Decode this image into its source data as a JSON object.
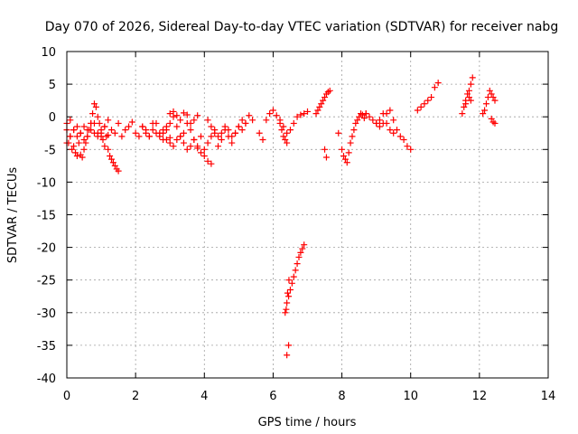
{
  "chart_data": {
    "type": "scatter",
    "title": "Day 070 of 2026, Sidereal Day-to-day VTEC variation (SDTVAR) for receiver nabg",
    "xlabel": "GPS time / hours",
    "ylabel": "SDTVAR / TECUs",
    "xlim": [
      0,
      14
    ],
    "ylim": [
      -40,
      10
    ],
    "xticks": [
      0,
      2,
      4,
      6,
      8,
      10,
      12,
      14
    ],
    "yticks": [
      10,
      5,
      0,
      -5,
      -10,
      -15,
      -20,
      -25,
      -30,
      -35,
      -40
    ],
    "grid": true,
    "marker": "plus",
    "color": "#ff0000",
    "segments": [
      {
        "x": [
          0.0,
          0.05,
          0.1,
          0.15,
          0.2,
          0.25,
          0.3,
          0.35,
          0.4,
          0.45,
          0.5,
          0.55,
          0.6,
          0.65,
          0.7,
          0.75,
          0.8,
          0.85,
          0.9,
          0.95,
          1.0,
          1.05,
          1.1,
          1.15,
          1.2,
          1.25,
          1.3,
          1.35,
          1.4,
          1.45,
          1.5
        ],
        "y": [
          -2.0,
          -4.0,
          -3.0,
          -5.0,
          -4.5,
          -5.5,
          -6.0,
          -4.0,
          -5.8,
          -6.2,
          -5.0,
          -4.0,
          -3.0,
          -2.0,
          -1.0,
          0.5,
          2.0,
          1.5,
          0.0,
          -1.0,
          -2.5,
          -3.5,
          -4.5,
          -3.0,
          -5.0,
          -6.0,
          -6.5,
          -7.0,
          -7.5,
          -8.0,
          -8.3
        ]
      },
      {
        "x": [
          0.0,
          0.1,
          0.2,
          0.3,
          0.4,
          0.5,
          0.6,
          0.7,
          0.8,
          0.9,
          1.0,
          1.1,
          1.2,
          1.3,
          1.4,
          1.5,
          1.6,
          1.7,
          1.8,
          1.9,
          2.0,
          2.1,
          2.2,
          2.3,
          2.4,
          2.5,
          2.6,
          2.7,
          2.8,
          2.9,
          3.0
        ],
        "y": [
          -1.0,
          -0.5,
          -2.0,
          -3.0,
          -2.5,
          -1.5,
          -3.0,
          -2.0,
          -1.0,
          -2.5,
          -3.0,
          -1.5,
          -0.5,
          -2.0,
          -2.5,
          -1.0,
          -3.0,
          -2.0,
          -1.5,
          -0.8,
          -2.5,
          -3.0,
          -1.5,
          -2.0,
          -3.0,
          -1.0,
          -2.5,
          -3.0,
          -2.0,
          -1.5,
          -3.2
        ]
      },
      {
        "x": [
          0.0,
          0.1,
          0.2,
          0.3,
          0.4,
          0.5,
          0.6,
          0.7,
          0.8,
          0.9,
          1.0,
          1.1,
          1.2
        ],
        "y": [
          -4.0,
          -3.0,
          -2.0,
          -1.5,
          -2.5,
          -3.5,
          -2.0,
          -1.0,
          -2.5,
          -3.0,
          -2.0,
          -1.5,
          -2.8
        ]
      },
      {
        "x": [
          2.2,
          2.3,
          2.4,
          2.5,
          2.6,
          2.7,
          2.8,
          2.9,
          3.0,
          3.1,
          3.2,
          3.3,
          3.4,
          3.5,
          3.6,
          3.7,
          3.8,
          3.9,
          4.0,
          4.1,
          4.2,
          4.3,
          4.4,
          4.5,
          4.6,
          4.7,
          4.8,
          4.9,
          5.0,
          5.1,
          5.2
        ],
        "y": [
          -1.5,
          -2.5,
          -3.0,
          -2.0,
          -1.0,
          -2.5,
          -3.5,
          -2.0,
          -1.0,
          0.0,
          -1.5,
          -3.0,
          -2.5,
          -1.0,
          -2.0,
          -3.5,
          -4.5,
          -3.0,
          -5.0,
          -4.0,
          -3.0,
          -2.5,
          -4.5,
          -3.5,
          -2.0,
          -3.0,
          -4.0,
          -2.5,
          -1.5,
          -2.0,
          -1.0
        ]
      },
      {
        "x": [
          2.8,
          2.9,
          3.0,
          3.1,
          3.2,
          3.3,
          3.4,
          3.5,
          3.6,
          3.7,
          3.8,
          3.9,
          4.0,
          4.1,
          4.2
        ],
        "y": [
          -2.5,
          -3.5,
          -4.0,
          -4.5,
          -3.5,
          -3.0,
          -4.0,
          -5.0,
          -4.5,
          -3.5,
          -4.8,
          -5.5,
          -6.0,
          -6.8,
          -7.2
        ]
      },
      {
        "x": [
          3.0,
          3.1,
          3.2,
          3.3,
          3.4,
          3.5,
          3.6,
          3.7,
          3.8
        ],
        "y": [
          0.5,
          0.8,
          0.2,
          -0.5,
          0.6,
          0.3,
          -1.0,
          -0.5,
          0.2
        ]
      },
      {
        "x": [
          4.1,
          4.2,
          4.3,
          4.4,
          4.5,
          4.6,
          4.7,
          4.8,
          4.9,
          5.0,
          5.1,
          5.2,
          5.3,
          5.4
        ],
        "y": [
          -0.5,
          -1.5,
          -2.0,
          -3.0,
          -2.5,
          -1.5,
          -2.0,
          -3.0,
          -2.5,
          -1.5,
          -0.5,
          -1.0,
          0.2,
          -0.5
        ]
      },
      {
        "x": [
          5.6,
          5.7,
          5.8,
          5.9,
          6.0,
          6.1,
          6.2,
          6.3,
          6.4,
          6.5,
          6.6,
          6.7,
          6.8,
          6.9,
          7.0
        ],
        "y": [
          -2.5,
          -3.5,
          -0.5,
          0.5,
          1.0,
          0.2,
          -0.5,
          -1.5,
          -2.5,
          -2.0,
          -1.0,
          0.0,
          0.3,
          0.5,
          0.8
        ]
      },
      {
        "x": [
          6.2,
          6.25,
          6.3,
          6.35,
          6.4
        ],
        "y": [
          -1.0,
          -2.0,
          -3.0,
          -3.5,
          -4.0
        ]
      },
      {
        "x": [
          6.35,
          6.4,
          6.45,
          6.5,
          6.55,
          6.6,
          6.65,
          6.7,
          6.75,
          6.8,
          6.85,
          6.9
        ],
        "y": [
          -30.0,
          -28.5,
          -27.5,
          -26.5,
          -25.5,
          -24.5,
          -23.5,
          -22.5,
          -21.5,
          -20.8,
          -20.2,
          -19.6
        ]
      },
      {
        "x": [
          6.38,
          6.42,
          6.46
        ],
        "y": [
          -29.5,
          -27.0,
          -25.0
        ]
      },
      {
        "x": [
          6.4,
          6.45
        ],
        "y": [
          -36.5,
          -35.0
        ]
      },
      {
        "x": [
          7.25,
          7.3,
          7.35,
          7.4,
          7.45,
          7.5,
          7.55,
          7.6,
          7.65
        ],
        "y": [
          0.5,
          1.0,
          1.5,
          2.0,
          2.5,
          3.0,
          3.5,
          3.8,
          4.0
        ]
      },
      {
        "x": [
          7.5,
          7.55
        ],
        "y": [
          -5.0,
          -6.2
        ]
      },
      {
        "x": [
          7.9
        ],
        "y": [
          -2.5
        ]
      },
      {
        "x": [
          8.0,
          8.05,
          8.1,
          8.15,
          8.2,
          8.25,
          8.3,
          8.35,
          8.4,
          8.45,
          8.5,
          8.55,
          8.6,
          8.65,
          8.7
        ],
        "y": [
          -5.0,
          -6.0,
          -6.5,
          -7.0,
          -5.5,
          -4.0,
          -3.0,
          -2.0,
          -1.0,
          -0.5,
          0.0,
          0.5,
          0.3,
          -0.2,
          0.5
        ]
      },
      {
        "x": [
          8.7,
          8.8,
          8.9,
          9.0,
          9.1,
          9.2,
          9.3,
          9.4,
          9.5,
          9.6,
          9.7,
          9.8,
          9.9,
          10.0
        ],
        "y": [
          0.5,
          0.0,
          -0.5,
          -1.0,
          -1.5,
          -1.0,
          0.5,
          1.0,
          -0.5,
          -2.0,
          -3.0,
          -3.5,
          -4.5,
          -5.0
        ]
      },
      {
        "x": [
          9.0,
          9.1,
          9.2,
          9.3,
          9.4,
          9.5
        ],
        "y": [
          -1.0,
          -0.5,
          0.5,
          -1.0,
          -2.0,
          -2.5
        ]
      },
      {
        "x": [
          10.2,
          10.3,
          10.4,
          10.5,
          10.6,
          10.7,
          10.8
        ],
        "y": [
          1.0,
          1.5,
          2.0,
          2.5,
          3.0,
          4.5,
          5.2
        ]
      },
      {
        "x": [
          11.5,
          11.55,
          11.6,
          11.65,
          11.7,
          11.75,
          11.8
        ],
        "y": [
          0.5,
          1.5,
          2.5,
          3.5,
          4.0,
          5.0,
          6.0
        ]
      },
      {
        "x": [
          11.6,
          11.7,
          11.75
        ],
        "y": [
          2.0,
          3.0,
          2.5
        ]
      },
      {
        "x": [
          12.1,
          12.15,
          12.2,
          12.25,
          12.3,
          12.35,
          12.4,
          12.45
        ],
        "y": [
          0.5,
          1.0,
          2.0,
          3.0,
          4.0,
          3.5,
          3.0,
          2.5
        ]
      },
      {
        "x": [
          12.35,
          12.4,
          12.45
        ],
        "y": [
          -0.3,
          -0.8,
          -1.0
        ]
      }
    ]
  }
}
